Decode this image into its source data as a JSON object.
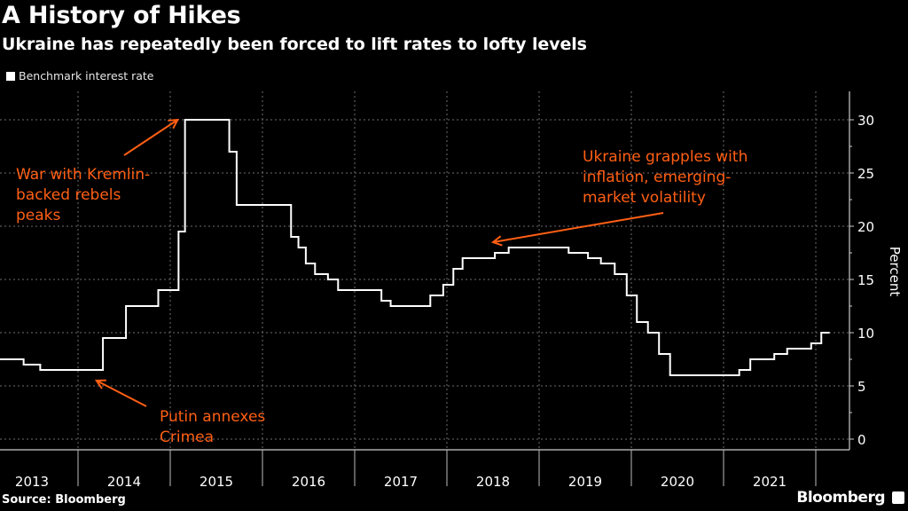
{
  "header": {
    "title": "A History of Hikes",
    "subtitle": "Ukraine has repeatedly been forced to lift rates to lofty levels"
  },
  "footer": {
    "source": "Source: Bloomberg",
    "brand": "Bloomberg"
  },
  "colors": {
    "background": "#000000",
    "line": "#ffffff",
    "annotation": "#ff5f14",
    "grid": "#6e6e6e"
  },
  "chart_data": {
    "type": "line",
    "step": true,
    "title": "A History of Hikes",
    "subtitle": "Ukraine has repeatedly been forced to lift rates to lofty levels",
    "xlabel": "",
    "ylabel": "Percent",
    "legend": {
      "position": "top-left",
      "entries": [
        "Benchmark interest rate"
      ]
    },
    "xlim": [
      2013.154,
      2022.15
    ],
    "ylim": [
      0,
      32.5
    ],
    "yticks": [
      0,
      5,
      10,
      15,
      20,
      25,
      30
    ],
    "yminor_step": 2.5,
    "xticks": [
      "2013",
      "2014",
      "2015",
      "2016",
      "2017",
      "2018",
      "2019",
      "2020",
      "2021"
    ],
    "grid": true,
    "series": [
      {
        "name": "Benchmark interest rate",
        "x": [
          2013.154,
          2013.41,
          2013.59,
          2014.27,
          2014.52,
          2014.87,
          2015.09,
          2015.16,
          2015.64,
          2015.72,
          2016.31,
          2016.39,
          2016.47,
          2016.57,
          2016.71,
          2016.82,
          2017.29,
          2017.39,
          2017.82,
          2017.96,
          2018.07,
          2018.17,
          2018.52,
          2018.67,
          2019.32,
          2019.53,
          2019.67,
          2019.82,
          2019.95,
          2020.06,
          2020.18,
          2020.3,
          2020.42,
          2021.17,
          2021.29,
          2021.55,
          2021.69,
          2021.95,
          2022.06,
          2022.15
        ],
        "values": [
          7.5,
          7.0,
          6.5,
          9.5,
          12.5,
          14,
          19.5,
          30,
          27,
          22,
          19,
          18,
          16.5,
          15.5,
          15,
          14,
          13,
          12.5,
          13.5,
          14.5,
          16,
          17,
          17.5,
          18,
          17.5,
          17,
          16.5,
          15.5,
          13.5,
          11,
          10,
          8,
          6,
          6.5,
          7.5,
          8,
          8.5,
          9,
          10,
          10
        ]
      }
    ],
    "annotations": [
      {
        "name": "war",
        "lines": [
          "War with Kremlin-",
          "backed rebels",
          "peaks"
        ],
        "arrow_to": [
          2015.08,
          30
        ]
      },
      {
        "name": "putin",
        "lines": [
          "Putin annexes",
          "Crimea"
        ],
        "arrow_to": [
          2014.2,
          5.5
        ]
      },
      {
        "name": "inflation",
        "lines": [
          "Ukraine grapples with",
          "inflation, emerging-",
          "market volatility"
        ],
        "arrow_to": [
          2018.5,
          18.5
        ]
      }
    ]
  }
}
